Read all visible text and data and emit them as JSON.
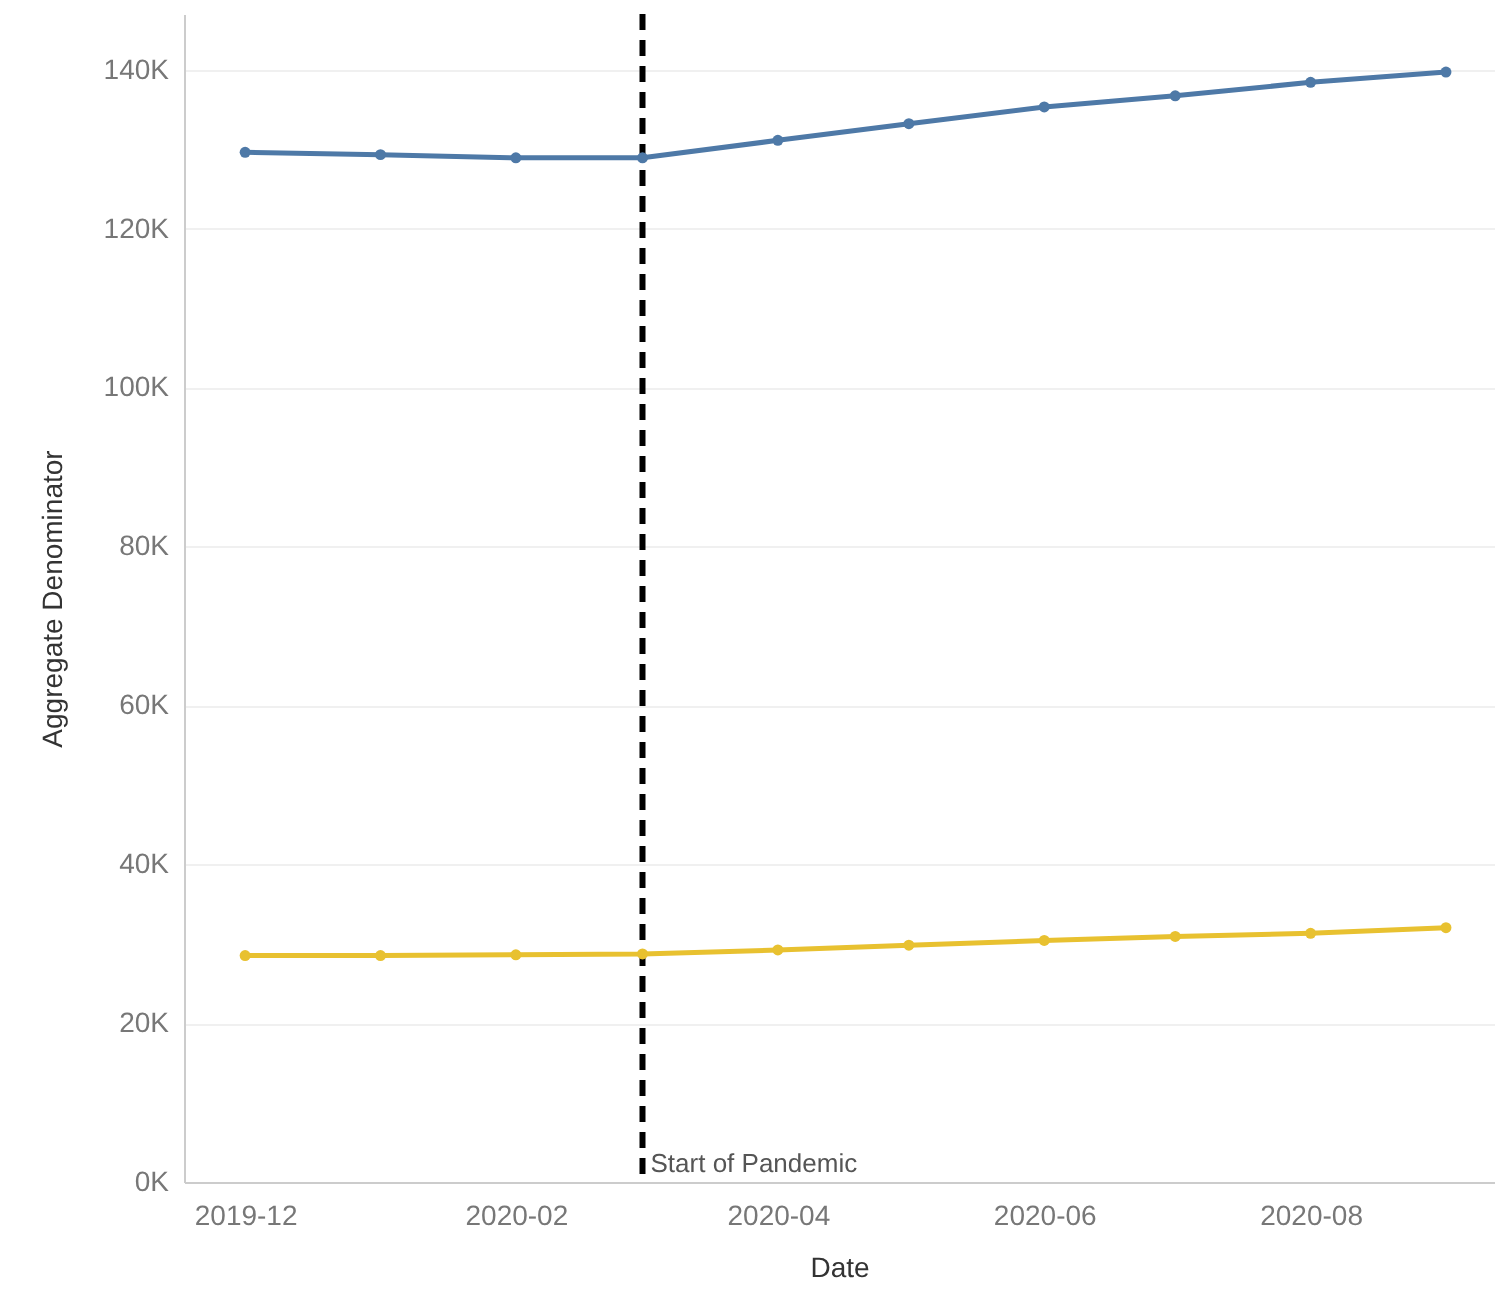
{
  "chart_data": {
    "type": "line",
    "xlabel": "Date",
    "ylabel": "Aggregate Denominator",
    "x": [
      "2019-12",
      "2020-01",
      "2020-02",
      "2020-03",
      "2020-04",
      "2020-05",
      "2020-06",
      "2020-07",
      "2020-08",
      "2020-09"
    ],
    "series": [
      {
        "color": "#4e79a7",
        "values": [
          129600,
          129300,
          128900,
          128900,
          131100,
          133200,
          135300,
          136700,
          138400,
          139700
        ]
      },
      {
        "color": "#e8c130",
        "values": [
          28500,
          28500,
          28600,
          28700,
          29200,
          29800,
          30400,
          30900,
          31300,
          32000
        ]
      }
    ],
    "xlim": [
      "2019-11-17",
      "2020-09-12"
    ],
    "xticks": [
      "2019-12",
      "2020-02",
      "2020-04",
      "2020-06",
      "2020-08"
    ],
    "ylim": [
      0,
      147000
    ],
    "yticks": [
      {
        "value": 0,
        "label": "0K"
      },
      {
        "value": 20000,
        "label": "20K"
      },
      {
        "value": 40000,
        "label": "40K"
      },
      {
        "value": 60000,
        "label": "60K"
      },
      {
        "value": 80000,
        "label": "80K"
      },
      {
        "value": 100000,
        "label": "100K"
      },
      {
        "value": 120000,
        "label": "120K"
      },
      {
        "value": 140000,
        "label": "140K"
      }
    ],
    "ref_lines": [
      {
        "axis": "x",
        "value": "2020-03",
        "label": "Start of Pandemic",
        "color": "#000000",
        "line_style": "dashed"
      }
    ],
    "grid": "y",
    "marker": "circle",
    "line_style": "solid"
  }
}
